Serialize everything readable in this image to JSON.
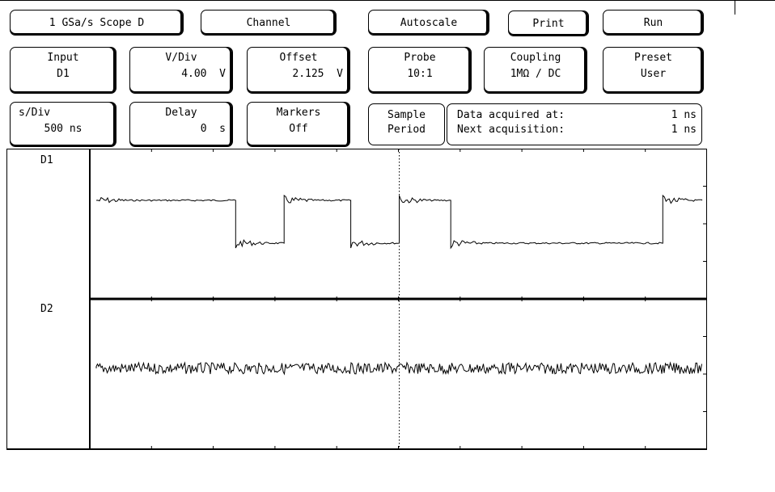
{
  "toolbar_row1": {
    "scope_title": "1 GSa/s Scope D",
    "channel": "Channel",
    "autoscale": "Autoscale",
    "print": "Print",
    "run": "Run"
  },
  "row2": {
    "input": {
      "label": "Input",
      "value": "D1"
    },
    "vdiv": {
      "label": "V/Div",
      "value": "4.00  V"
    },
    "offset": {
      "label": "Offset",
      "value": "2.125  V"
    },
    "probe": {
      "label": "Probe",
      "value": "10:1"
    },
    "coupling": {
      "label": "Coupling",
      "value": "1MΩ / DC"
    },
    "preset": {
      "label": "Preset",
      "value": "User"
    }
  },
  "row3": {
    "sdiv": {
      "label": "s/Div",
      "value": "500 ns"
    },
    "delay": {
      "label": "Delay",
      "value": "0  s"
    },
    "markers": {
      "label": "Markers",
      "value": "Off"
    },
    "sample_period": {
      "label": "Sample",
      "value": "Period"
    },
    "acq": {
      "line1_label": "Data acquired at:",
      "line1_value": "1 ns",
      "line2_label": "Next acquisition:",
      "line2_value": "1 ns"
    }
  },
  "channels": {
    "d1_label": "D1",
    "d2_label": "D2"
  },
  "traces": {
    "d1_levels": [
      {
        "t0": 0.0,
        "t1": 0.23,
        "level": "high"
      },
      {
        "t0": 0.23,
        "t1": 0.31,
        "level": "low"
      },
      {
        "t0": 0.31,
        "t1": 0.42,
        "level": "high"
      },
      {
        "t0": 0.42,
        "t1": 0.5,
        "level": "low"
      },
      {
        "t0": 0.5,
        "t1": 0.585,
        "level": "high"
      },
      {
        "t0": 0.585,
        "t1": 0.935,
        "level": "low"
      },
      {
        "t0": 0.935,
        "t1": 1.0,
        "level": "high"
      }
    ],
    "d2_level": "mid-noise"
  }
}
